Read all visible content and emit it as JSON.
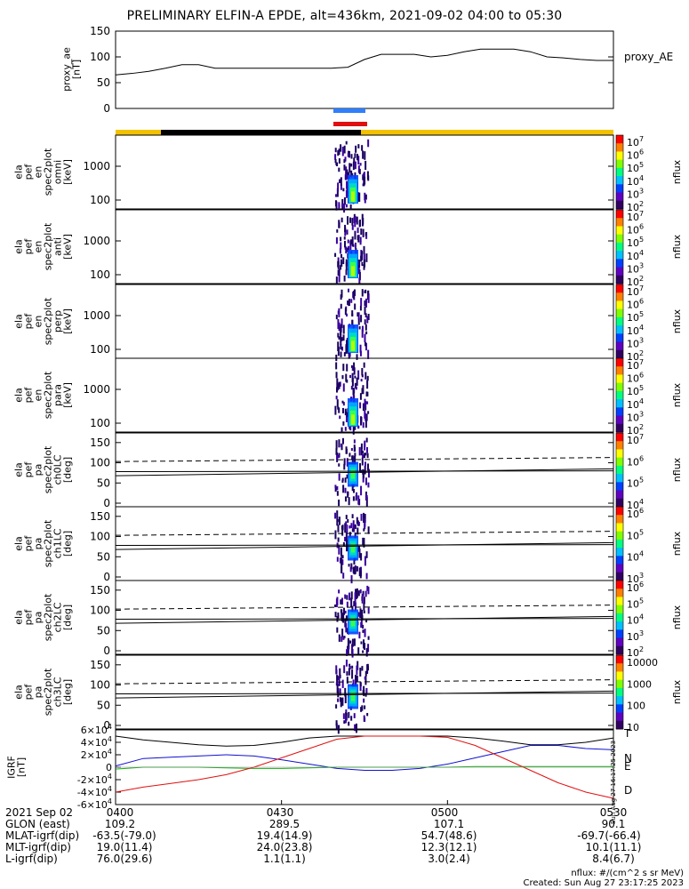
{
  "title": "PRELIMINARY ELFIN-A EPDE, alt=436km, 2021-09-02 04:00 to 05:30",
  "colors": {
    "accent_yellow": "#f2c200",
    "black_bar": "#000000",
    "marker_blue": "#2f7fff",
    "marker_red": "#e01010",
    "igrf_N": "#1010d0",
    "igrf_E": "#10b010",
    "igrf_D": "#e01010"
  },
  "colorbar_label": "nflux",
  "chart_data": [
    {
      "type": "line",
      "panel": "proxy_ae",
      "ylabel": "proxy_ae\n[nT]",
      "legend": "proxy_AE",
      "ylim": [
        0,
        150
      ],
      "yticks": [
        0,
        50,
        100,
        150
      ],
      "x_minutes": [
        0,
        3,
        6,
        9,
        12,
        15,
        18,
        21,
        24,
        27,
        30,
        33,
        36,
        39,
        42,
        45,
        48,
        51,
        54,
        57,
        60,
        63,
        66,
        69,
        72,
        75,
        78,
        81,
        84,
        87,
        90
      ],
      "values": [
        65,
        68,
        72,
        78,
        85,
        85,
        78,
        78,
        78,
        78,
        78,
        78,
        78,
        78,
        80,
        95,
        105,
        105,
        105,
        100,
        103,
        110,
        115,
        115,
        115,
        110,
        100,
        98,
        95,
        93,
        93
      ]
    },
    {
      "type": "heatmap",
      "panel": "omni",
      "ylabel": [
        "ela",
        "pef",
        "en",
        "spec2plot",
        "omni",
        "[keV]"
      ],
      "yticks": [
        "100",
        "1000"
      ],
      "cbar_ticks": [
        "10^7",
        "10^6",
        "10^5",
        "10^4",
        "10^3",
        "10^2"
      ]
    },
    {
      "type": "heatmap",
      "panel": "anti",
      "ylabel": [
        "ela",
        "pef",
        "en",
        "spec2plot",
        "anti",
        "[keV]"
      ],
      "yticks": [
        "100",
        "1000"
      ],
      "cbar_ticks": [
        "10^7",
        "10^6",
        "10^5",
        "10^4",
        "10^3",
        "10^2"
      ]
    },
    {
      "type": "heatmap",
      "panel": "perp",
      "ylabel": [
        "ela",
        "pef",
        "en",
        "spec2plot",
        "perp",
        "[keV]"
      ],
      "yticks": [
        "100",
        "1000"
      ],
      "cbar_ticks": [
        "10^7",
        "10^6",
        "10^5",
        "10^4",
        "10^3",
        "10^2"
      ]
    },
    {
      "type": "heatmap",
      "panel": "para",
      "ylabel": [
        "ela",
        "pef",
        "en",
        "spec2plot",
        "para",
        "[keV]"
      ],
      "yticks": [
        "100",
        "1000"
      ],
      "cbar_ticks": [
        "10^7",
        "10^6",
        "10^5",
        "10^4",
        "10^3",
        "10^2"
      ]
    },
    {
      "type": "heatmap",
      "panel": "ch0LC",
      "ylabel": [
        "ela",
        "pef",
        "pa",
        "spec2plot",
        "ch0LC",
        "[deg]"
      ],
      "yticks": [
        "0",
        "50",
        "100",
        "150"
      ],
      "cbar_ticks": [
        "10^7",
        "10^6",
        "10^5",
        "10^4"
      ]
    },
    {
      "type": "heatmap",
      "panel": "ch1LC",
      "ylabel": [
        "ela",
        "pef",
        "pa",
        "spec2plot",
        "ch1LC",
        "[deg]"
      ],
      "yticks": [
        "0",
        "50",
        "100",
        "150"
      ],
      "cbar_ticks": [
        "10^6",
        "10^5",
        "10^4",
        "10^3"
      ]
    },
    {
      "type": "heatmap",
      "panel": "ch2LC",
      "ylabel": [
        "ela",
        "pef",
        "pa",
        "spec2plot",
        "ch2LC",
        "[deg]"
      ],
      "yticks": [
        "0",
        "50",
        "100",
        "150"
      ],
      "cbar_ticks": [
        "10^6",
        "10^5",
        "10^4",
        "10^3",
        "10^2"
      ]
    },
    {
      "type": "heatmap",
      "panel": "ch3LC",
      "ylabel": [
        "ela",
        "pef",
        "pa",
        "spec2plot",
        "ch3LC",
        "[deg]"
      ],
      "yticks": [
        "0",
        "50",
        "100",
        "150"
      ],
      "cbar_ticks": [
        "10000",
        "1000",
        "100",
        "10"
      ]
    },
    {
      "type": "line",
      "panel": "igrf",
      "ylabel": "IGRF\n[nT]",
      "yticks": [
        "6×10^4",
        "4×10^4",
        "2×10^4",
        "0",
        "-2×10^4",
        "-4×10^4",
        "-6×10^4"
      ],
      "ylim": [
        -60000,
        60000
      ],
      "x_minutes": [
        0,
        5,
        10,
        15,
        20,
        25,
        30,
        35,
        40,
        45,
        50,
        55,
        60,
        65,
        70,
        75,
        80,
        85,
        90
      ],
      "series": [
        {
          "name": "T",
          "values": [
            50000,
            44000,
            40000,
            36000,
            34000,
            35000,
            40000,
            47000,
            50000,
            50000,
            50000,
            50000,
            50000,
            47000,
            42000,
            36000,
            36000,
            40000,
            47000
          ]
        },
        {
          "name": "N",
          "values": [
            2000,
            14000,
            16000,
            18000,
            20000,
            18000,
            12000,
            5000,
            -2000,
            -5000,
            -5000,
            -2000,
            5000,
            15000,
            25000,
            35000,
            35000,
            30000,
            28000
          ]
        },
        {
          "name": "E",
          "values": [
            -3000,
            0,
            0,
            0,
            -1000,
            -2000,
            -2000,
            -1000,
            0,
            0,
            0,
            0,
            0,
            1000,
            1000,
            1000,
            1000,
            1000,
            1000
          ]
        },
        {
          "name": "D",
          "values": [
            -40000,
            -32000,
            -26000,
            -20000,
            -12000,
            0,
            15000,
            30000,
            45000,
            50000,
            50000,
            50000,
            48000,
            35000,
            15000,
            -5000,
            -25000,
            -40000,
            -50000
          ]
        }
      ]
    }
  ],
  "time_ticks": [
    "0400",
    "0430",
    "0500",
    "0530"
  ],
  "footer": {
    "date": "2021 Sep 02",
    "rows": [
      {
        "label": "GLON (east)",
        "values": [
          "109.2",
          "289.5",
          "107.1",
          "90.1"
        ]
      },
      {
        "label": "MLAT-igrf(dip)",
        "values": [
          "-63.5(-79.0)",
          "19.4(14.9)",
          "54.7(48.6)",
          "-69.7(-66.4)"
        ]
      },
      {
        "label": "MLT-igrf(dip)",
        "values": [
          "19.0(11.4)",
          "24.0(23.8)",
          "12.3(12.1)",
          "10.1(11.1)"
        ]
      },
      {
        "label": "L-igrf(dip)",
        "values": [
          "76.0(29.6)",
          "1.1(1.1)",
          "3.0(2.4)",
          "8.4(6.7)"
        ]
      }
    ],
    "units": "nflux: #/(cm^2 s sr MeV)",
    "created": "Created: Sun Aug 27 23:17:25 2023"
  },
  "side_stamp": "Sun Aug 27 16:17:25 2023"
}
